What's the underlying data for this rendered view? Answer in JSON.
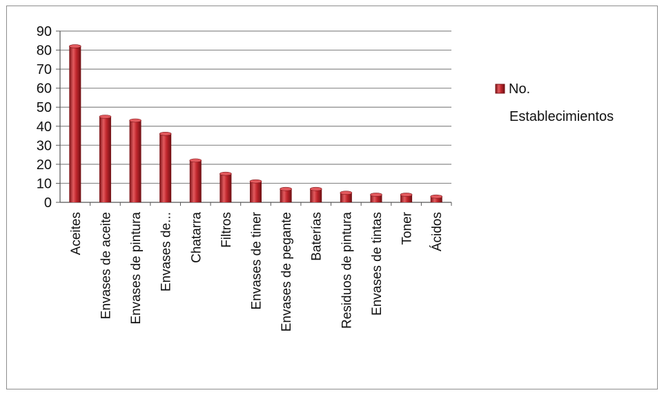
{
  "chart_data": {
    "type": "bar",
    "title": "",
    "xlabel": "",
    "ylabel": "",
    "categories": [
      "Aceites",
      "Envases de aceite",
      "Envases de pintura",
      "Envases de...",
      "Chatarra",
      "Filtros",
      "Envases de tiner",
      "Envases de pegante",
      "Baterías",
      "Residuos de pintura",
      "Envases de tintas",
      "Toner",
      "Ácidos"
    ],
    "series": [
      {
        "name": "No. Establecimientos",
        "legend_lines": [
          "No.",
          "Establecimientos"
        ],
        "values": [
          82,
          45,
          43,
          36,
          22,
          15,
          11,
          7,
          7,
          5,
          4,
          4,
          3
        ]
      }
    ],
    "ylim": [
      0,
      90
    ],
    "y_ticks": [
      0,
      10,
      20,
      30,
      40,
      50,
      60,
      70,
      80,
      90
    ],
    "grid": true,
    "legend_position": "right",
    "colors": {
      "bar_fill": "#c0262c",
      "bar_dark": "#7a1317",
      "bar_light": "#e25a5e",
      "grid": "#8a8a8a",
      "axis": "#555555",
      "frame": "#8c8c8c"
    }
  }
}
